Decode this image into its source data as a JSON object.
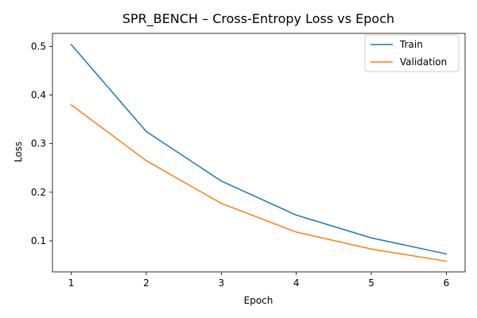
{
  "chart_data": {
    "type": "line",
    "title": "SPR_BENCH – Cross-Entropy Loss vs Epoch",
    "xlabel": "Epoch",
    "ylabel": "Loss",
    "x": [
      1,
      2,
      3,
      4,
      5,
      6
    ],
    "xticks": [
      1,
      2,
      3,
      4,
      5,
      6
    ],
    "yticks": [
      0.1,
      0.2,
      0.3,
      0.4,
      0.5
    ],
    "xlim": [
      0.75,
      6.25
    ],
    "ylim": [
      0.036,
      0.527
    ],
    "grid": false,
    "legend": "top-right",
    "series": [
      {
        "name": "Train",
        "color": "#1f77b4",
        "values": [
          0.504,
          0.325,
          0.223,
          0.153,
          0.106,
          0.073
        ]
      },
      {
        "name": "Validation",
        "color": "#ff7f0e",
        "values": [
          0.38,
          0.265,
          0.177,
          0.118,
          0.083,
          0.058
        ]
      }
    ]
  }
}
